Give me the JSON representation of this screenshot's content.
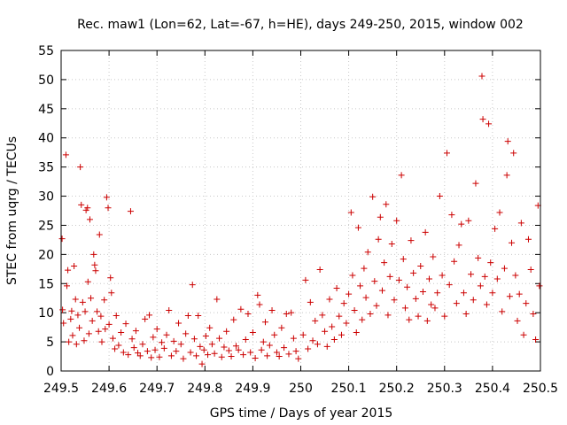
{
  "chart_data": {
    "type": "scatter",
    "title": "Rec. maw1 (Lon=62, Lat=-67, h=HE), days 249-250, 2015, window 002",
    "xlabel": "GPS time / Days of year 2015",
    "ylabel": "STEC from uqrg / TECUs",
    "xlim": [
      249.5,
      250.5
    ],
    "ylim": [
      0,
      55
    ],
    "x_ticks": [
      249.5,
      249.6,
      249.7,
      249.8,
      249.9,
      250,
      250.1,
      250.2,
      250.3,
      250.4,
      250.5
    ],
    "x_tick_labels": [
      "249.5",
      "249.6",
      "249.7",
      "249.8",
      "249.9",
      "250",
      "250.1",
      "250.2",
      "250.3",
      "250.4",
      "250.5"
    ],
    "y_ticks": [
      0,
      5,
      10,
      15,
      20,
      25,
      30,
      35,
      40,
      45,
      50,
      55
    ],
    "y_tick_labels": [
      "0",
      "5",
      "10",
      "15",
      "20",
      "25",
      "30",
      "35",
      "40",
      "45",
      "50",
      "55"
    ],
    "grid": true,
    "marker": "plus",
    "color": "#cc0000",
    "series": [
      {
        "name": "",
        "points": [
          [
            249.502,
            22.7
          ],
          [
            249.503,
            10.5
          ],
          [
            249.505,
            8.2
          ],
          [
            249.51,
            37.1
          ],
          [
            249.512,
            14.6
          ],
          [
            249.514,
            17.3
          ],
          [
            249.516,
            5.0
          ],
          [
            249.52,
            8.9
          ],
          [
            249.522,
            10.3
          ],
          [
            249.524,
            6.1
          ],
          [
            249.527,
            18.0
          ],
          [
            249.53,
            12.3
          ],
          [
            249.532,
            4.6
          ],
          [
            249.535,
            9.6
          ],
          [
            249.538,
            7.4
          ],
          [
            249.54,
            35.0
          ],
          [
            249.542,
            28.5
          ],
          [
            249.545,
            11.8
          ],
          [
            249.548,
            5.2
          ],
          [
            249.55,
            10.2
          ],
          [
            249.552,
            27.6
          ],
          [
            249.555,
            28.0
          ],
          [
            249.556,
            15.3
          ],
          [
            249.558,
            6.4
          ],
          [
            249.56,
            26.0
          ],
          [
            249.562,
            12.5
          ],
          [
            249.565,
            8.6
          ],
          [
            249.568,
            20.0
          ],
          [
            249.57,
            18.2
          ],
          [
            249.572,
            17.2
          ],
          [
            249.575,
            10.2
          ],
          [
            249.578,
            6.8
          ],
          [
            249.58,
            23.4
          ],
          [
            249.583,
            9.4
          ],
          [
            249.585,
            5.0
          ],
          [
            249.59,
            12.2
          ],
          [
            249.592,
            7.2
          ],
          [
            249.595,
            29.8
          ],
          [
            249.598,
            28.0
          ],
          [
            249.6,
            8.0
          ],
          [
            249.603,
            16.0
          ],
          [
            249.605,
            13.4
          ],
          [
            249.608,
            5.6
          ],
          [
            249.612,
            3.8
          ],
          [
            249.615,
            9.5
          ],
          [
            249.62,
            4.4
          ],
          [
            249.625,
            6.6
          ],
          [
            249.63,
            3.2
          ],
          [
            249.635,
            8.1
          ],
          [
            249.64,
            2.8
          ],
          [
            249.645,
            27.4
          ],
          [
            249.648,
            5.5
          ],
          [
            249.652,
            4.0
          ],
          [
            249.656,
            6.9
          ],
          [
            249.66,
            3.1
          ],
          [
            249.665,
            2.6
          ],
          [
            249.67,
            4.6
          ],
          [
            249.675,
            8.9
          ],
          [
            249.68,
            3.4
          ],
          [
            249.684,
            9.6
          ],
          [
            249.688,
            2.3
          ],
          [
            249.692,
            5.8
          ],
          [
            249.696,
            3.6
          ],
          [
            249.7,
            7.2
          ],
          [
            249.705,
            2.4
          ],
          [
            249.71,
            4.9
          ],
          [
            249.715,
            3.9
          ],
          [
            249.72,
            6.2
          ],
          [
            249.725,
            10.4
          ],
          [
            249.73,
            2.6
          ],
          [
            249.735,
            5.1
          ],
          [
            249.74,
            3.4
          ],
          [
            249.745,
            8.2
          ],
          [
            249.75,
            4.6
          ],
          [
            249.755,
            2.1
          ],
          [
            249.76,
            6.4
          ],
          [
            249.765,
            9.5
          ],
          [
            249.77,
            3.2
          ],
          [
            249.774,
            14.8
          ],
          [
            249.778,
            5.5
          ],
          [
            249.782,
            2.6
          ],
          [
            249.786,
            9.5
          ],
          [
            249.79,
            4.2
          ],
          [
            249.794,
            1.2
          ],
          [
            249.798,
            3.6
          ],
          [
            249.802,
            6.0
          ],
          [
            249.806,
            2.8
          ],
          [
            249.81,
            7.4
          ],
          [
            249.815,
            4.6
          ],
          [
            249.82,
            3.0
          ],
          [
            249.825,
            12.3
          ],
          [
            249.83,
            5.6
          ],
          [
            249.835,
            2.4
          ],
          [
            249.84,
            4.1
          ],
          [
            249.845,
            6.8
          ],
          [
            249.85,
            3.5
          ],
          [
            249.855,
            2.5
          ],
          [
            249.86,
            8.8
          ],
          [
            249.865,
            4.3
          ],
          [
            249.87,
            3.6
          ],
          [
            249.875,
            10.6
          ],
          [
            249.88,
            2.8
          ],
          [
            249.885,
            5.4
          ],
          [
            249.89,
            9.8
          ],
          [
            249.895,
            3.2
          ],
          [
            249.9,
            6.6
          ],
          [
            249.905,
            2.2
          ],
          [
            249.91,
            13.0
          ],
          [
            249.914,
            11.4
          ],
          [
            249.918,
            3.6
          ],
          [
            249.922,
            5.0
          ],
          [
            249.926,
            8.4
          ],
          [
            249.93,
            2.6
          ],
          [
            249.935,
            4.4
          ],
          [
            249.94,
            10.4
          ],
          [
            249.945,
            6.2
          ],
          [
            249.95,
            3.2
          ],
          [
            249.955,
            2.5
          ],
          [
            249.96,
            7.4
          ],
          [
            249.965,
            4.0
          ],
          [
            249.97,
            9.8
          ],
          [
            249.975,
            2.9
          ],
          [
            249.98,
            10.0
          ],
          [
            249.985,
            5.6
          ],
          [
            249.99,
            3.4
          ],
          [
            249.995,
            2.1
          ],
          [
            250.005,
            6.2
          ],
          [
            250.01,
            15.6
          ],
          [
            250.015,
            3.8
          ],
          [
            250.02,
            11.8
          ],
          [
            250.025,
            5.2
          ],
          [
            250.03,
            8.6
          ],
          [
            250.035,
            4.6
          ],
          [
            250.04,
            17.4
          ],
          [
            250.045,
            9.6
          ],
          [
            250.05,
            6.8
          ],
          [
            250.055,
            4.2
          ],
          [
            250.06,
            12.3
          ],
          [
            250.065,
            7.6
          ],
          [
            250.07,
            5.4
          ],
          [
            250.075,
            14.2
          ],
          [
            250.08,
            9.4
          ],
          [
            250.085,
            6.2
          ],
          [
            250.09,
            11.6
          ],
          [
            250.095,
            8.2
          ],
          [
            250.1,
            13.2
          ],
          [
            250.105,
            27.2
          ],
          [
            250.108,
            16.4
          ],
          [
            250.112,
            10.4
          ],
          [
            250.116,
            6.6
          ],
          [
            250.12,
            24.6
          ],
          [
            250.124,
            14.6
          ],
          [
            250.128,
            8.8
          ],
          [
            250.132,
            17.6
          ],
          [
            250.136,
            12.6
          ],
          [
            250.14,
            20.4
          ],
          [
            250.145,
            9.8
          ],
          [
            250.15,
            29.9
          ],
          [
            250.154,
            15.4
          ],
          [
            250.158,
            11.2
          ],
          [
            250.162,
            22.6
          ],
          [
            250.166,
            26.4
          ],
          [
            250.17,
            13.8
          ],
          [
            250.174,
            18.6
          ],
          [
            250.178,
            28.6
          ],
          [
            250.182,
            9.6
          ],
          [
            250.186,
            16.2
          ],
          [
            250.19,
            21.8
          ],
          [
            250.195,
            12.2
          ],
          [
            250.2,
            25.8
          ],
          [
            250.205,
            15.6
          ],
          [
            250.21,
            33.6
          ],
          [
            250.214,
            19.2
          ],
          [
            250.218,
            10.8
          ],
          [
            250.222,
            14.4
          ],
          [
            250.226,
            8.8
          ],
          [
            250.23,
            22.4
          ],
          [
            250.235,
            16.8
          ],
          [
            250.24,
            12.4
          ],
          [
            250.245,
            9.4
          ],
          [
            250.25,
            18.0
          ],
          [
            250.255,
            13.6
          ],
          [
            250.26,
            23.8
          ],
          [
            250.264,
            8.6
          ],
          [
            250.268,
            15.8
          ],
          [
            250.272,
            11.4
          ],
          [
            250.276,
            19.6
          ],
          [
            250.28,
            10.8
          ],
          [
            250.285,
            13.4
          ],
          [
            250.29,
            30.0
          ],
          [
            250.295,
            16.4
          ],
          [
            250.3,
            9.4
          ],
          [
            250.305,
            37.4
          ],
          [
            250.31,
            14.8
          ],
          [
            250.315,
            26.8
          ],
          [
            250.32,
            18.8
          ],
          [
            250.325,
            11.6
          ],
          [
            250.33,
            21.6
          ],
          [
            250.335,
            25.2
          ],
          [
            250.34,
            13.4
          ],
          [
            250.345,
            9.8
          ],
          [
            250.35,
            25.8
          ],
          [
            250.355,
            16.6
          ],
          [
            250.36,
            12.2
          ],
          [
            250.365,
            32.2
          ],
          [
            250.37,
            19.4
          ],
          [
            250.375,
            14.6
          ],
          [
            250.378,
            50.6
          ],
          [
            250.38,
            43.2
          ],
          [
            250.384,
            16.2
          ],
          [
            250.388,
            11.4
          ],
          [
            250.392,
            42.4
          ],
          [
            250.396,
            18.6
          ],
          [
            250.4,
            13.4
          ],
          [
            250.405,
            24.4
          ],
          [
            250.41,
            15.8
          ],
          [
            250.415,
            27.2
          ],
          [
            250.42,
            10.2
          ],
          [
            250.425,
            17.6
          ],
          [
            250.43,
            33.6
          ],
          [
            250.432,
            39.4
          ],
          [
            250.436,
            12.8
          ],
          [
            250.44,
            22.0
          ],
          [
            250.444,
            37.4
          ],
          [
            250.448,
            16.4
          ],
          [
            250.452,
            8.6
          ],
          [
            250.456,
            13.2
          ],
          [
            250.46,
            25.4
          ],
          [
            250.465,
            6.2
          ],
          [
            250.47,
            11.6
          ],
          [
            250.475,
            22.6
          ],
          [
            250.48,
            17.4
          ],
          [
            250.485,
            9.8
          ],
          [
            250.49,
            5.4
          ],
          [
            250.495,
            28.4
          ],
          [
            250.498,
            14.6
          ]
        ]
      }
    ]
  }
}
